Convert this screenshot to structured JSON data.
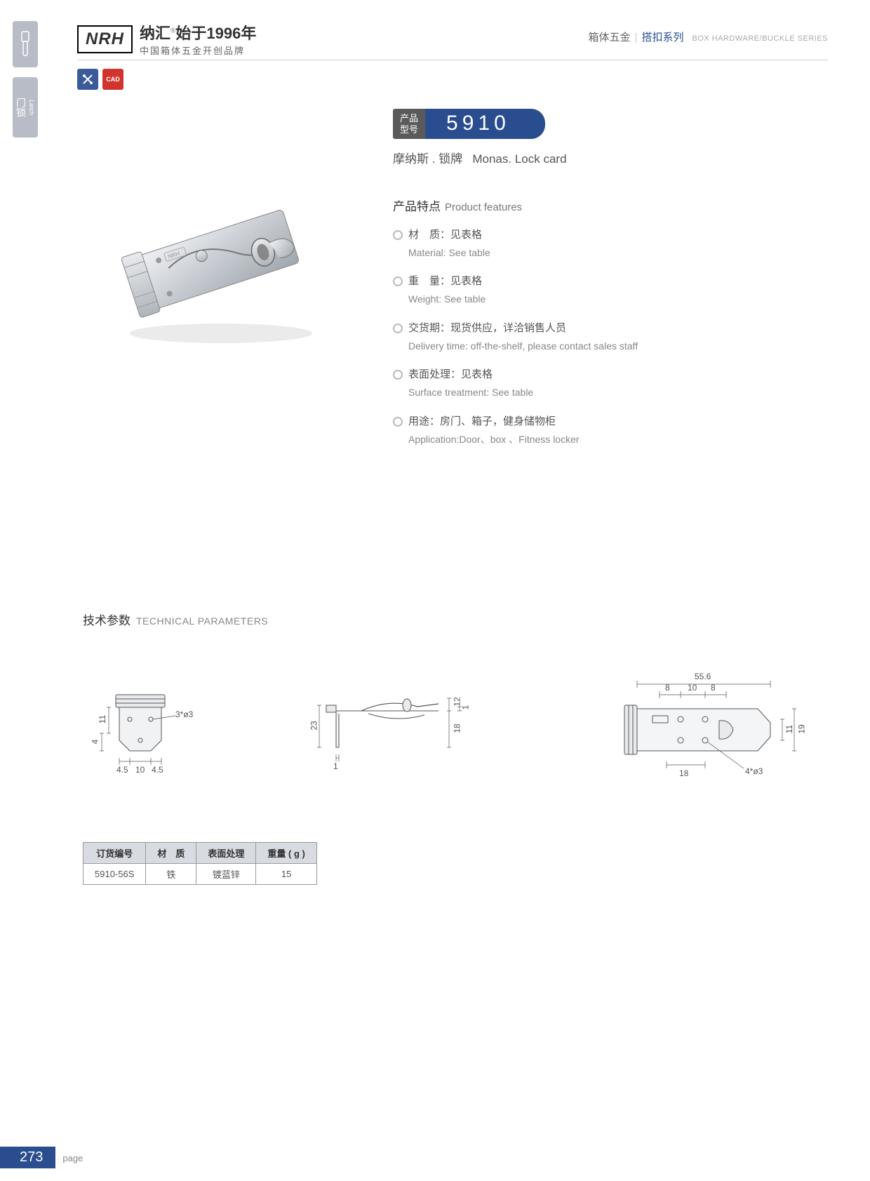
{
  "sidebar": {
    "tab2_cn": "门锁",
    "tab2_en": "Latch"
  },
  "header": {
    "logo_mark": "NRH",
    "logo_cn": "纳汇",
    "logo_since": "始于1996年",
    "logo_sub": "中国箱体五金开创品牌",
    "right_cn1": "箱体五金",
    "right_cn2": "搭扣系列",
    "right_en": "BOX HARDWARE/BUCKLE SERIES"
  },
  "action_icons": {
    "icon2_text": "CAD"
  },
  "model": {
    "label_l1": "产品",
    "label_l2": "型号",
    "number": "5910",
    "name_cn": "摩纳斯 . 锁牌",
    "name_en": "Monas. Lock card"
  },
  "features": {
    "title_cn": "产品特点",
    "title_en": "Product features",
    "items": [
      {
        "cn": "材　质：见表格",
        "en": "Material: See table"
      },
      {
        "cn": "重　量：见表格",
        "en": "Weight: See table"
      },
      {
        "cn": "交货期：现货供应，详洽销售人员",
        "en": "Delivery time: off-the-shelf, please contact sales staff"
      },
      {
        "cn": "表面处理：见表格",
        "en": "Surface treatment:   See table"
      },
      {
        "cn": "用途：房门、箱子，健身储物柜",
        "en": "Application:Door、box 、Fitness locker"
      }
    ]
  },
  "tech": {
    "title_cn": "技术参数",
    "title_en": "TECHNICAL PARAMETERS",
    "diagram1": {
      "d11": "11",
      "d4": "4",
      "d45a": "4.5",
      "d10": "10",
      "d45b": "4.5",
      "holes": "3*ø3"
    },
    "diagram2": {
      "d23": "23",
      "d1": "1",
      "d12": "12",
      "d1b": "1",
      "d18": "18"
    },
    "diagram3": {
      "d556": "55.6",
      "d8a": "8",
      "d10": "10",
      "d8b": "8",
      "d11": "11",
      "d19": "19",
      "d18": "18",
      "holes": "4*ø3"
    }
  },
  "table": {
    "headers": [
      "订货编号",
      "材　质",
      "表面处理",
      "重量 ( g )"
    ],
    "rows": [
      [
        "5910-56S",
        "铁",
        "镀蓝锌",
        "15"
      ]
    ]
  },
  "footer": {
    "page_num": "273",
    "page_label": "page"
  },
  "colors": {
    "brand_blue": "#2a4d8f",
    "side_gray": "#b8bcc6",
    "dark_gray": "#5a5a5a",
    "red": "#d0342c"
  }
}
